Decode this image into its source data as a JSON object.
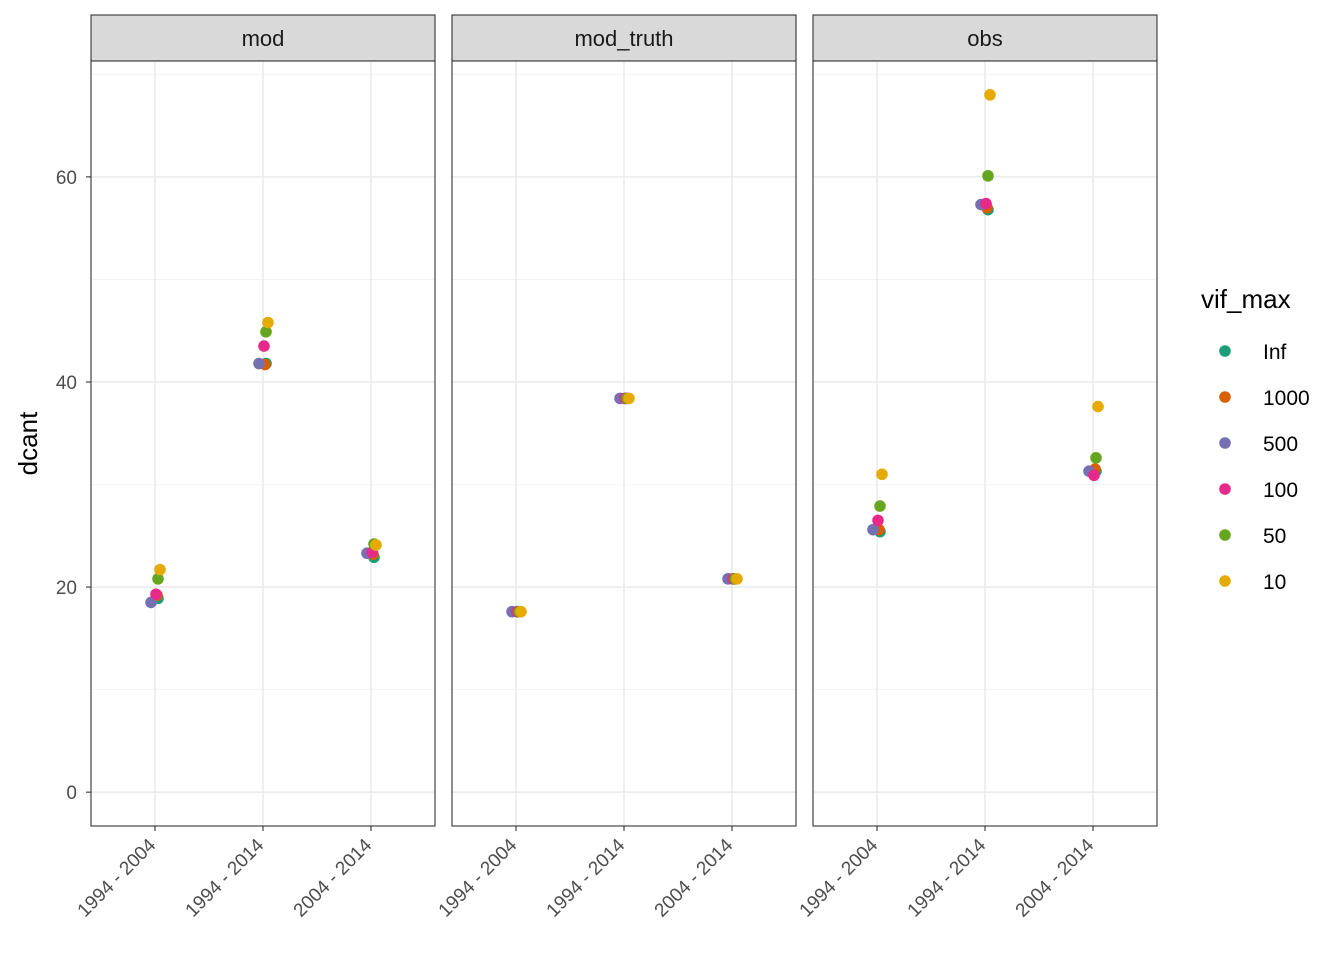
{
  "chart_data": {
    "type": "scatter",
    "ylabel": "dcant",
    "xlabel": "",
    "ylim": [
      -3.3,
      71.3
    ],
    "yticks": [
      0,
      20,
      40,
      60
    ],
    "categories": [
      "1994 - 2004",
      "1994 - 2014",
      "2004 - 2014"
    ],
    "grid": true,
    "legend_position": "right",
    "legend": {
      "title": "vif_max",
      "entries": [
        {
          "name": "Inf",
          "color": "#1B9E77"
        },
        {
          "name": "1000",
          "color": "#D95F02"
        },
        {
          "name": "500",
          "color": "#7570B3"
        },
        {
          "name": "100",
          "color": "#E7298A"
        },
        {
          "name": "50",
          "color": "#66A61E"
        },
        {
          "name": "10",
          "color": "#E6AB02"
        }
      ]
    },
    "panels": [
      {
        "name": "mod",
        "series": [
          {
            "name": "Inf",
            "values": [
              18.9,
              41.8,
              22.9
            ]
          },
          {
            "name": "1000",
            "values": [
              19.2,
              41.7,
              23.2
            ]
          },
          {
            "name": "500",
            "values": [
              18.5,
              41.8,
              23.3
            ]
          },
          {
            "name": "100",
            "values": [
              19.3,
              43.5,
              23.4
            ]
          },
          {
            "name": "50",
            "values": [
              20.8,
              44.9,
              24.2
            ]
          },
          {
            "name": "10",
            "values": [
              21.7,
              45.8,
              24.1
            ]
          }
        ]
      },
      {
        "name": "mod_truth",
        "series": [
          {
            "name": "Inf",
            "values": [
              17.6,
              38.4,
              20.8
            ]
          },
          {
            "name": "1000",
            "values": [
              17.6,
              38.4,
              20.8
            ]
          },
          {
            "name": "500",
            "values": [
              17.6,
              38.4,
              20.8
            ]
          },
          {
            "name": "100",
            "values": [
              17.6,
              38.4,
              20.8
            ]
          },
          {
            "name": "50",
            "values": [
              17.6,
              38.4,
              20.8
            ]
          },
          {
            "name": "10",
            "values": [
              17.6,
              38.4,
              20.8
            ]
          }
        ]
      },
      {
        "name": "obs",
        "series": [
          {
            "name": "Inf",
            "values": [
              25.4,
              56.8,
              31.3
            ]
          },
          {
            "name": "1000",
            "values": [
              25.6,
              57.0,
              31.5
            ]
          },
          {
            "name": "500",
            "values": [
              25.6,
              57.3,
              31.3
            ]
          },
          {
            "name": "100",
            "values": [
              26.5,
              57.4,
              30.9
            ]
          },
          {
            "name": "50",
            "values": [
              27.9,
              60.1,
              32.6
            ]
          },
          {
            "name": "10",
            "values": [
              31.0,
              68.0,
              37.6
            ]
          }
        ]
      }
    ]
  }
}
